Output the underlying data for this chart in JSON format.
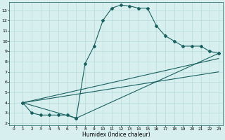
{
  "title": "",
  "xlabel": "Humidex (Indice chaleur)",
  "bg_color": "#d8efef",
  "grid_color": "#b8dada",
  "line_color": "#1a6060",
  "xlim": [
    -0.5,
    23.5
  ],
  "ylim": [
    1.8,
    13.8
  ],
  "yticks": [
    2,
    3,
    4,
    5,
    6,
    7,
    8,
    9,
    10,
    11,
    12,
    13
  ],
  "xticks": [
    0,
    1,
    2,
    3,
    4,
    5,
    6,
    7,
    8,
    9,
    10,
    11,
    12,
    13,
    14,
    15,
    16,
    17,
    18,
    19,
    20,
    21,
    22,
    23
  ],
  "line1_x": [
    1,
    2,
    3,
    4,
    5,
    6,
    7,
    8,
    9,
    10,
    11,
    12,
    13,
    14,
    15,
    16,
    17,
    18,
    19,
    20,
    21,
    22,
    23
  ],
  "line1_y": [
    4.0,
    3.0,
    2.8,
    2.8,
    2.8,
    2.8,
    2.5,
    7.8,
    9.5,
    12.0,
    13.2,
    13.5,
    13.4,
    13.2,
    13.2,
    11.5,
    10.5,
    10.0,
    9.5,
    9.5,
    9.5,
    9.0,
    8.8
  ],
  "line2_x": [
    1,
    7,
    23
  ],
  "line2_y": [
    4.0,
    2.5,
    8.8
  ],
  "line3_x": [
    1,
    23
  ],
  "line3_y": [
    4.0,
    8.3
  ],
  "line4_x": [
    1,
    23
  ],
  "line4_y": [
    4.0,
    7.0
  ]
}
